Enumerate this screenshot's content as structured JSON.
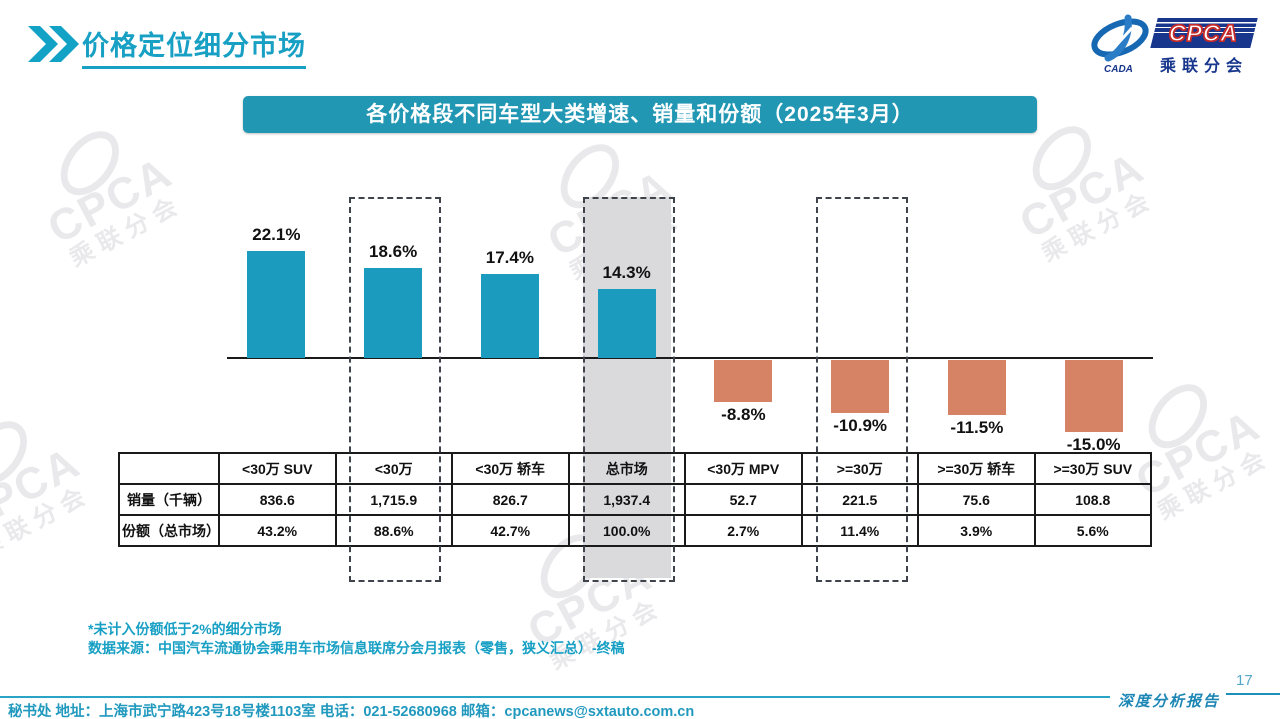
{
  "page": {
    "title": "价格定位细分市场",
    "page_number": "17",
    "report_label": "深度分析报告"
  },
  "logo": {
    "cpca": "CPCA",
    "cada": "CADA",
    "subtitle": "乘联分会"
  },
  "banner": {
    "title": "各价格段不同车型大类增速、销量和份额（2025年3月）"
  },
  "chart_data": {
    "type": "bar",
    "title": "各价格段不同车型大类增速、销量和份额（2025年3月）",
    "categories": [
      "<30万 SUV",
      "<30万",
      "<30万 轿车",
      "总市场",
      "<30万 MPV",
      ">=30万",
      ">=30万 轿车",
      ">=30万 SUV"
    ],
    "series": [
      {
        "name": "增速",
        "unit": "%",
        "values": [
          22.1,
          18.6,
          17.4,
          14.3,
          -8.8,
          -10.9,
          -11.5,
          -15.0
        ]
      },
      {
        "name": "销量（千辆）",
        "values": [
          836.6,
          1715.9,
          826.7,
          1937.4,
          52.7,
          221.5,
          75.6,
          108.8
        ]
      },
      {
        "name": "份额（总市场）",
        "unit": "%",
        "values": [
          43.2,
          88.6,
          42.7,
          100.0,
          2.7,
          11.4,
          3.9,
          5.6
        ]
      }
    ],
    "bar_labels": [
      "22.1%",
      "18.6%",
      "17.4%",
      "14.3%",
      "-8.8%",
      "-10.9%",
      "-11.5%",
      "-15.0%"
    ],
    "highlight_dashed_categories": [
      "<30万",
      ">=30万"
    ],
    "highlight_filled_categories": [
      "总市场"
    ],
    "positive_color": "#1B9CBE",
    "negative_color": "#D68264",
    "ylim": [
      -16,
      24
    ],
    "grid": false,
    "legend": "none"
  },
  "table": {
    "corner_label": "",
    "columns": [
      "<30万 SUV",
      "<30万",
      "<30万 轿车",
      "总市场",
      "<30万 MPV",
      ">=30万",
      ">=30万 轿车",
      ">=30万 SUV"
    ],
    "row_headers": [
      "销量（千辆）",
      "份额（总市场）"
    ],
    "rows": [
      [
        "836.6",
        "1,715.9",
        "826.7",
        "1,937.4",
        "52.7",
        "221.5",
        "75.6",
        "108.8"
      ],
      [
        "43.2%",
        "88.6%",
        "42.7%",
        "100.0%",
        "2.7%",
        "11.4%",
        "3.9%",
        "5.6%"
      ]
    ]
  },
  "footnotes": {
    "note1": "*未计入份额低于2%的细分市场",
    "note2": "数据来源：中国汽车流通协会乘用车市场信息联席分会月报表（零售，狭义汇总）-终稿"
  },
  "footer": {
    "contact": "秘书处  地址：上海市武宁路423号18号楼1103室 电话：021-52680968  邮箱：cpcanews@sxtauto.com.cn"
  },
  "colors": {
    "accent_teal": "#17A0C4",
    "banner_bg": "#2197B4",
    "positive_bar": "#1B9CBE",
    "negative_bar": "#D68264",
    "highlight_fill": "#DADADD",
    "dashed_border": "#3F434C",
    "logo_blue": "#17368C",
    "logo_red": "#C52A2A"
  },
  "watermark": {
    "cpca": "CPCA",
    "subtitle": "乘联分会"
  }
}
